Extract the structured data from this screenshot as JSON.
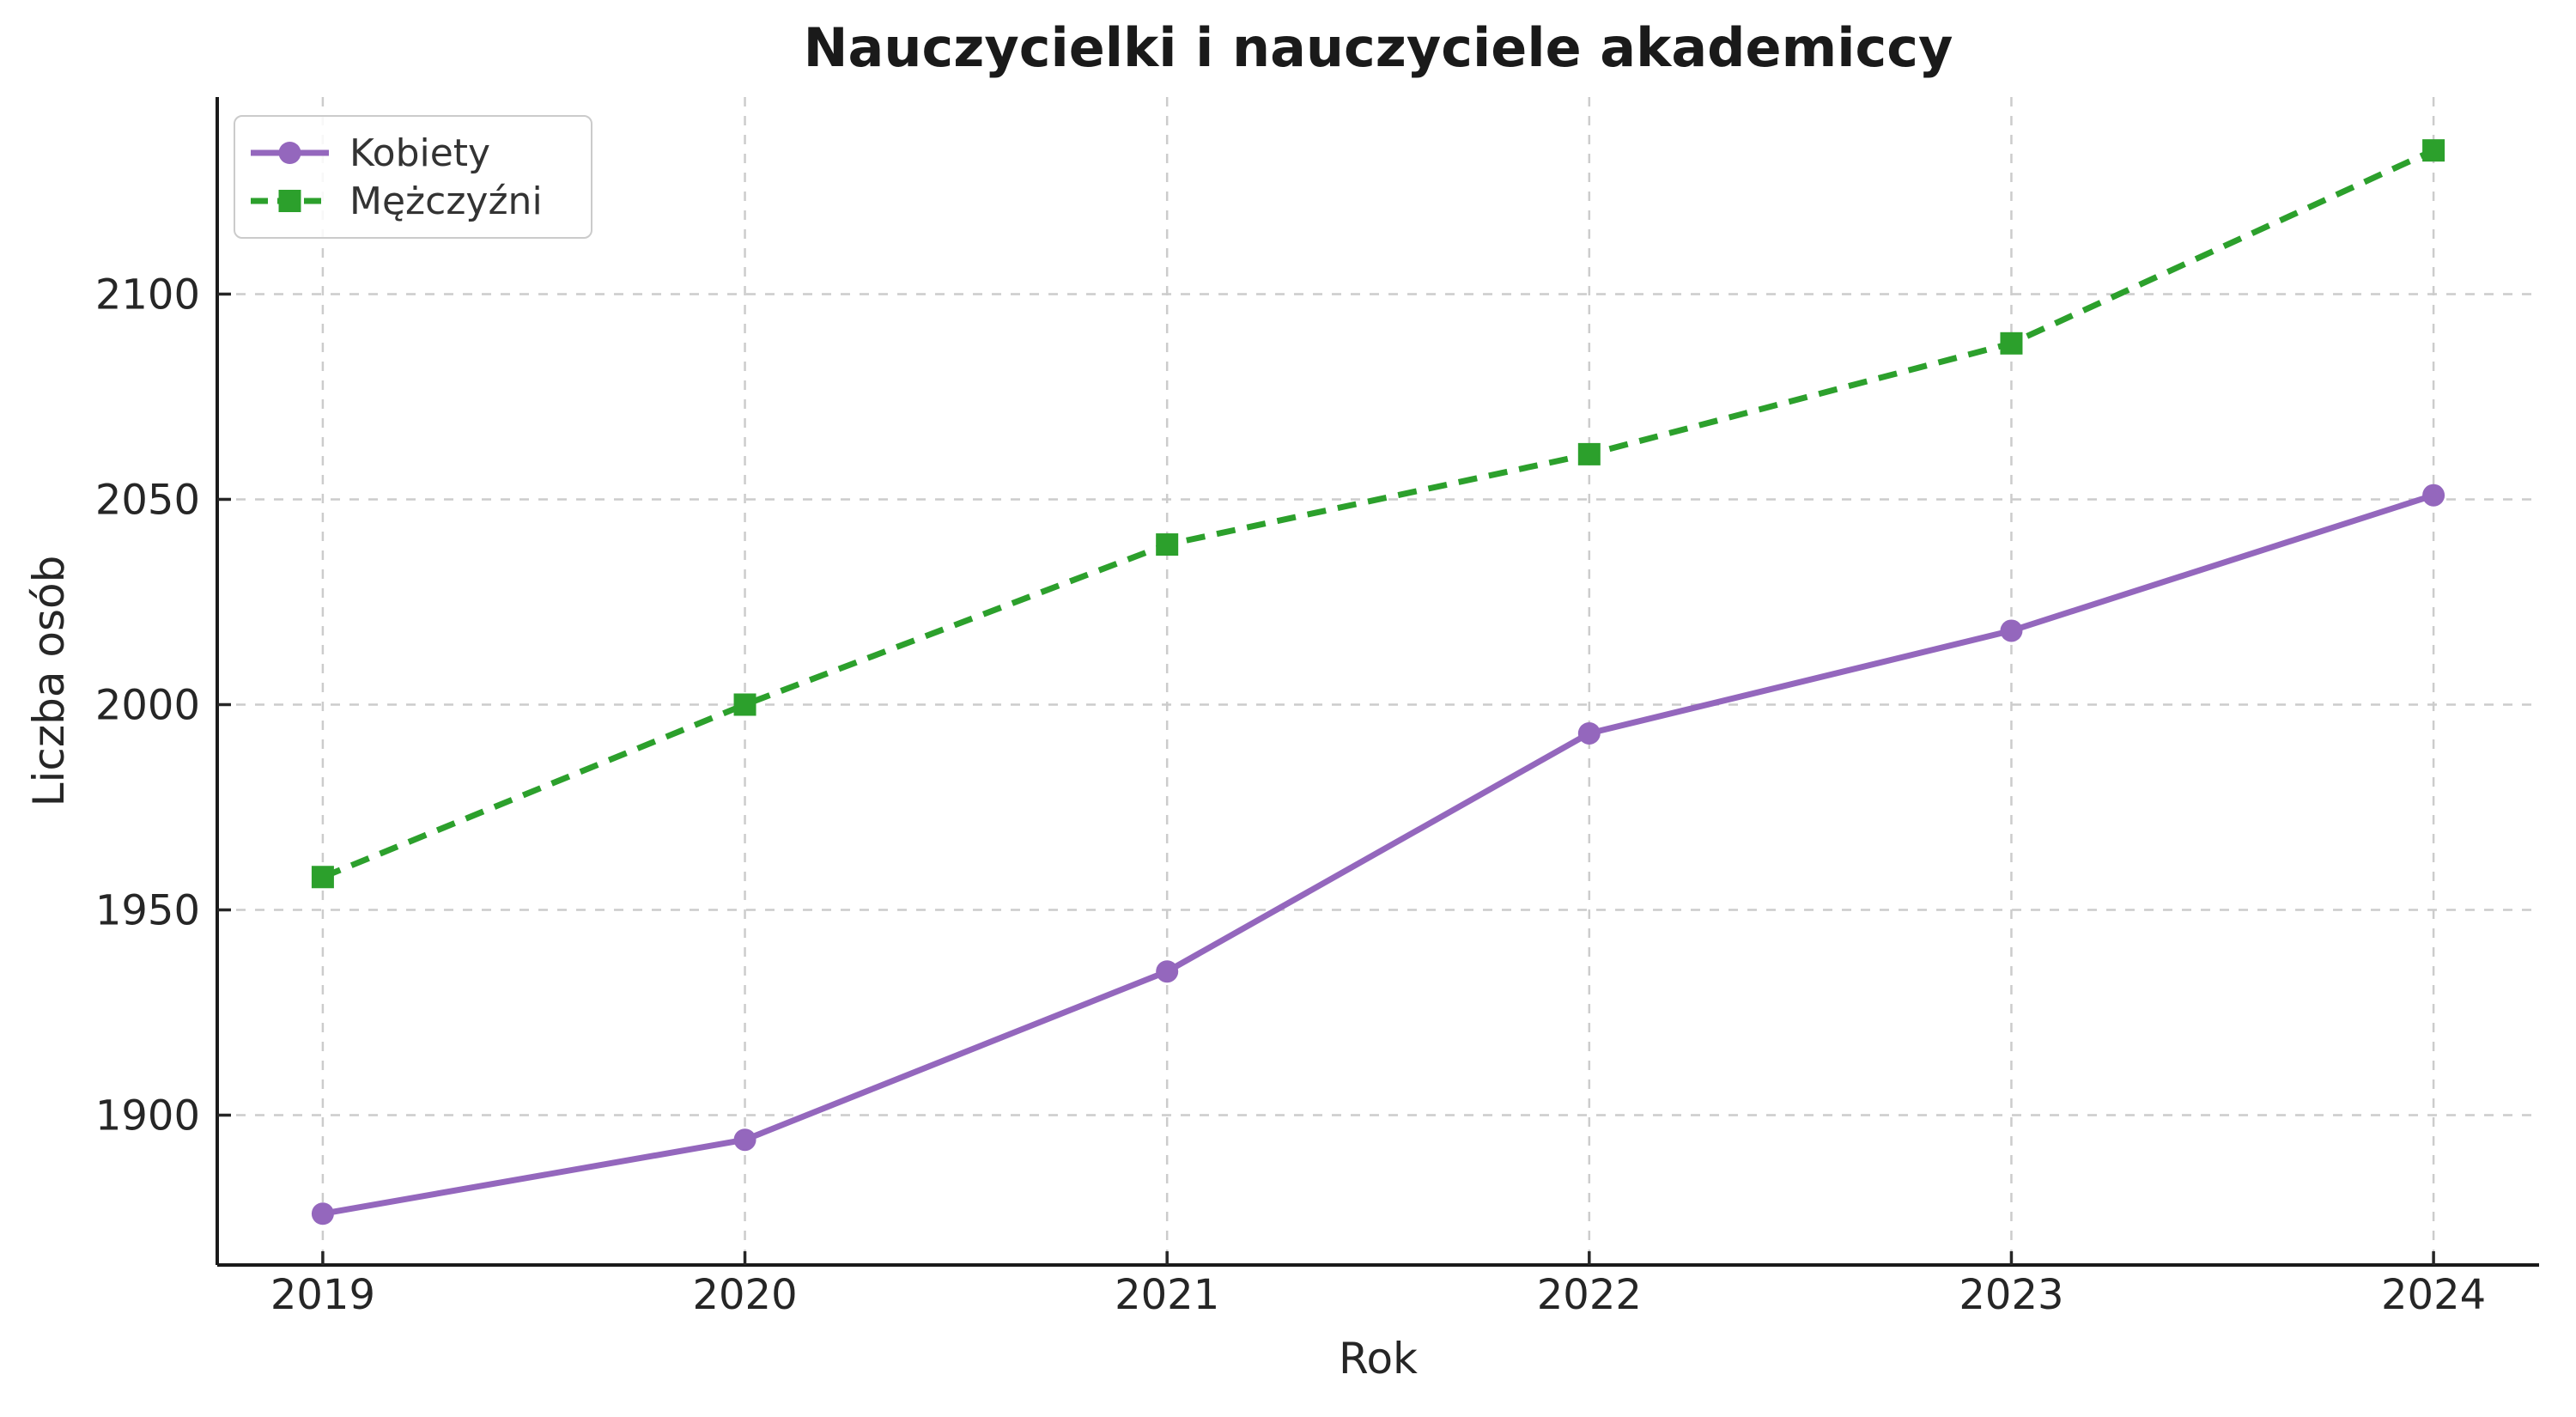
{
  "chart_data": {
    "type": "line",
    "title": "Nauczycielki i nauczyciele akademiccy",
    "xlabel": "Rok",
    "ylabel": "Liczba osób",
    "x": [
      2019,
      2020,
      2021,
      2022,
      2023,
      2024
    ],
    "series": [
      {
        "name": "Kobiety",
        "values": [
          1876,
          1894,
          1935,
          1993,
          2018,
          2051
        ],
        "color": "#9467bd",
        "marker": "circle",
        "line_style": "solid"
      },
      {
        "name": "Mężczyźni",
        "values": [
          1958,
          2000,
          2039,
          2061,
          2088,
          2135
        ],
        "color": "#2ca02c",
        "marker": "square",
        "line_style": "dashed"
      }
    ],
    "xticks": [
      2019,
      2020,
      2021,
      2022,
      2023,
      2024
    ],
    "yticks": [
      1900,
      1950,
      2000,
      2050,
      2100
    ],
    "xlim": [
      2018.75,
      2024.25
    ],
    "ylim": [
      1863.5,
      2148
    ],
    "grid": true,
    "legend_position": "upper-left",
    "colors": {
      "background": "#ffffff",
      "gridline": "#cccccc",
      "spine": "#1a1a1a",
      "text": "#262626"
    }
  }
}
